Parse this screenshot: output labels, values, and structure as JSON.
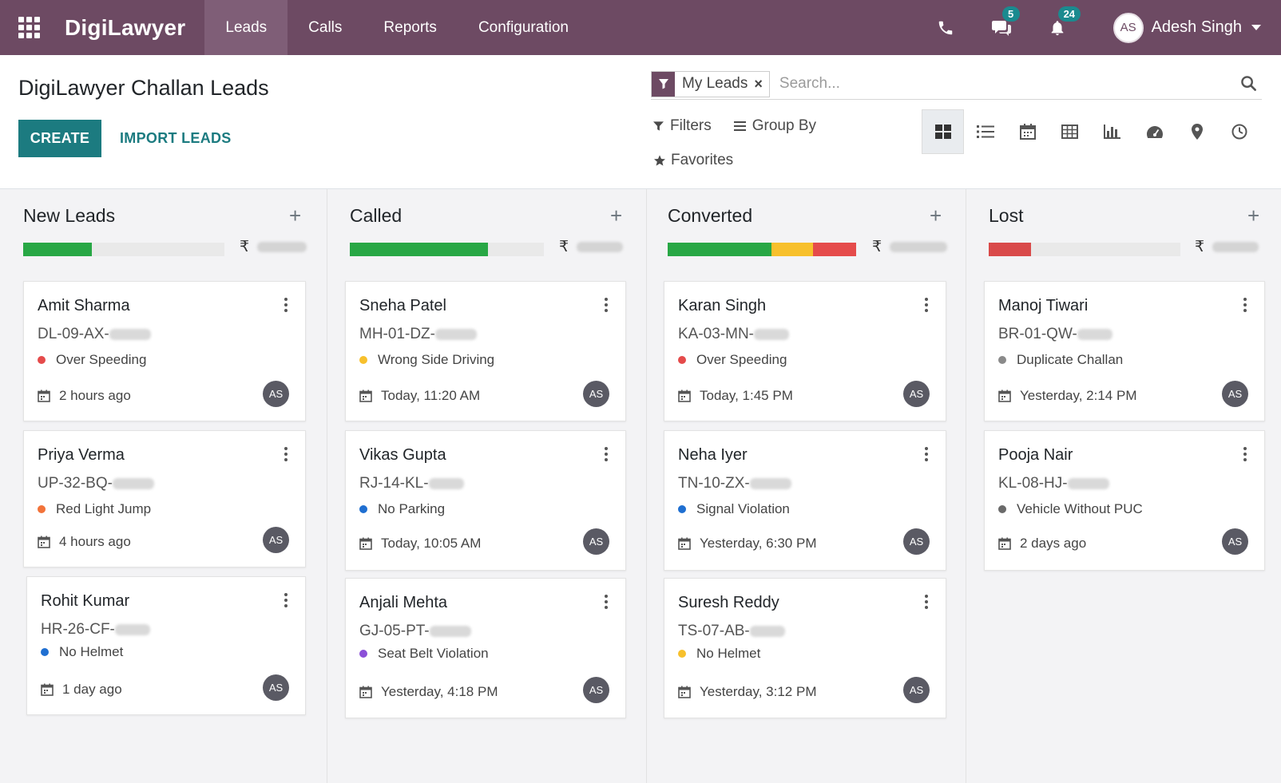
{
  "topbar": {
    "brand": "DigiLawyer",
    "nav": [
      {
        "label": "Leads",
        "active": true
      },
      {
        "label": "Calls",
        "active": false
      },
      {
        "label": "Reports",
        "active": false
      },
      {
        "label": "Configuration",
        "active": false
      }
    ],
    "messages_count": "5",
    "notifications_count": "24",
    "user_initials": "AS",
    "user_name": "Adesh Singh"
  },
  "control": {
    "title": "DigiLawyer Challan Leads",
    "create_label": "CREATE",
    "import_label": "IMPORT LEADS",
    "facet_label": "My Leads",
    "facet_remove": "×",
    "search_placeholder": "Search...",
    "filters_label": "Filters",
    "groupby_label": "Group By",
    "favorites_label": "Favorites",
    "views": [
      "kanban-icon",
      "list-icon",
      "calendar-icon",
      "pivot-icon",
      "graph-icon",
      "dashboard-icon",
      "map-pin-icon",
      "activity-clock-icon"
    ],
    "active_view": "kanban-icon"
  },
  "colors": {
    "brand": "#6d4a63",
    "accent": "#1c7b80",
    "green": "#28a745",
    "yellow": "#f7c02c",
    "red": "#e54b4b",
    "orange": "#f2733a",
    "blue": "#1f6fd1",
    "purple": "#8b4fd8",
    "grey": "#8a8a8a"
  },
  "columns": [
    {
      "title": "New Leads",
      "currency": "₹",
      "progress": [
        {
          "color": "#28a745",
          "fraction": 0.34
        }
      ],
      "cards": [
        {
          "name": "Amit Sharma",
          "plate": "DL-09-AX-",
          "tag": "Over Speeding",
          "tag_color": "#e54b4b",
          "time": "2 hours ago",
          "avatar": "AS"
        },
        {
          "name": "Priya Verma",
          "plate": "UP-32-BQ-",
          "tag": "Red Light Jump",
          "tag_color": "#f2733a",
          "time": "4 hours ago",
          "avatar": "AS"
        },
        {
          "name": "Rohit Kumar",
          "plate": "HR-26-CF-",
          "tag": "No Helmet",
          "tag_color": "#1f6fd1",
          "time": "1 day ago",
          "avatar": "AS"
        }
      ]
    },
    {
      "title": "Called",
      "currency": "₹",
      "progress": [
        {
          "color": "#28a745",
          "fraction": 0.71
        }
      ],
      "cards": [
        {
          "name": "Sneha Patel",
          "plate": "MH-01-DZ-",
          "tag": "Wrong Side Driving",
          "tag_color": "#f7c02c",
          "time": "Today, 11:20 AM",
          "avatar": "AS"
        },
        {
          "name": "Vikas Gupta",
          "plate": "RJ-14-KL-",
          "tag": "No Parking",
          "tag_color": "#1f6fd1",
          "time": "Today, 10:05 AM",
          "avatar": "AS"
        },
        {
          "name": "Anjali Mehta",
          "plate": "GJ-05-PT-",
          "tag": "Seat Belt Violation",
          "tag_color": "#8b4fd8",
          "time": "Yesterday, 4:18 PM",
          "avatar": "AS"
        }
      ]
    },
    {
      "title": "Converted",
      "currency": "₹",
      "progress": [
        {
          "color": "#28a745",
          "fraction": 0.55
        },
        {
          "color": "#f7c02c",
          "fraction": 0.22
        },
        {
          "color": "#e54b4b",
          "fraction": 0.23
        }
      ],
      "cards": [
        {
          "name": "Karan Singh",
          "plate": "KA-03-MN-",
          "tag": "Over Speeding",
          "tag_color": "#e54b4b",
          "time": "Today, 1:45 PM",
          "avatar": "AS"
        },
        {
          "name": "Neha Iyer",
          "plate": "TN-10-ZX-",
          "tag": "Signal Violation",
          "tag_color": "#1f6fd1",
          "time": "Yesterday, 6:30 PM",
          "avatar": "AS"
        },
        {
          "name": "Suresh Reddy",
          "plate": "TS-07-AB-",
          "tag": "No Helmet",
          "tag_color": "#f7c02c",
          "time": "Yesterday, 3:12 PM",
          "avatar": "AS"
        }
      ]
    },
    {
      "title": "Lost",
      "currency": "₹",
      "progress": [
        {
          "color": "#d94a4a",
          "fraction": 0.22
        }
      ],
      "cards": [
        {
          "name": "Manoj Tiwari",
          "plate": "BR-01-QW-",
          "tag": "Duplicate Challan",
          "tag_color": "#8a8a8a",
          "time": "Yesterday, 2:14 PM",
          "avatar": "AS"
        },
        {
          "name": "Pooja Nair",
          "plate": "KL-08-HJ-",
          "tag": "Vehicle Without PUC",
          "tag_color": "#6a6a6a",
          "time": "2 days ago",
          "avatar": "AS"
        }
      ]
    }
  ]
}
